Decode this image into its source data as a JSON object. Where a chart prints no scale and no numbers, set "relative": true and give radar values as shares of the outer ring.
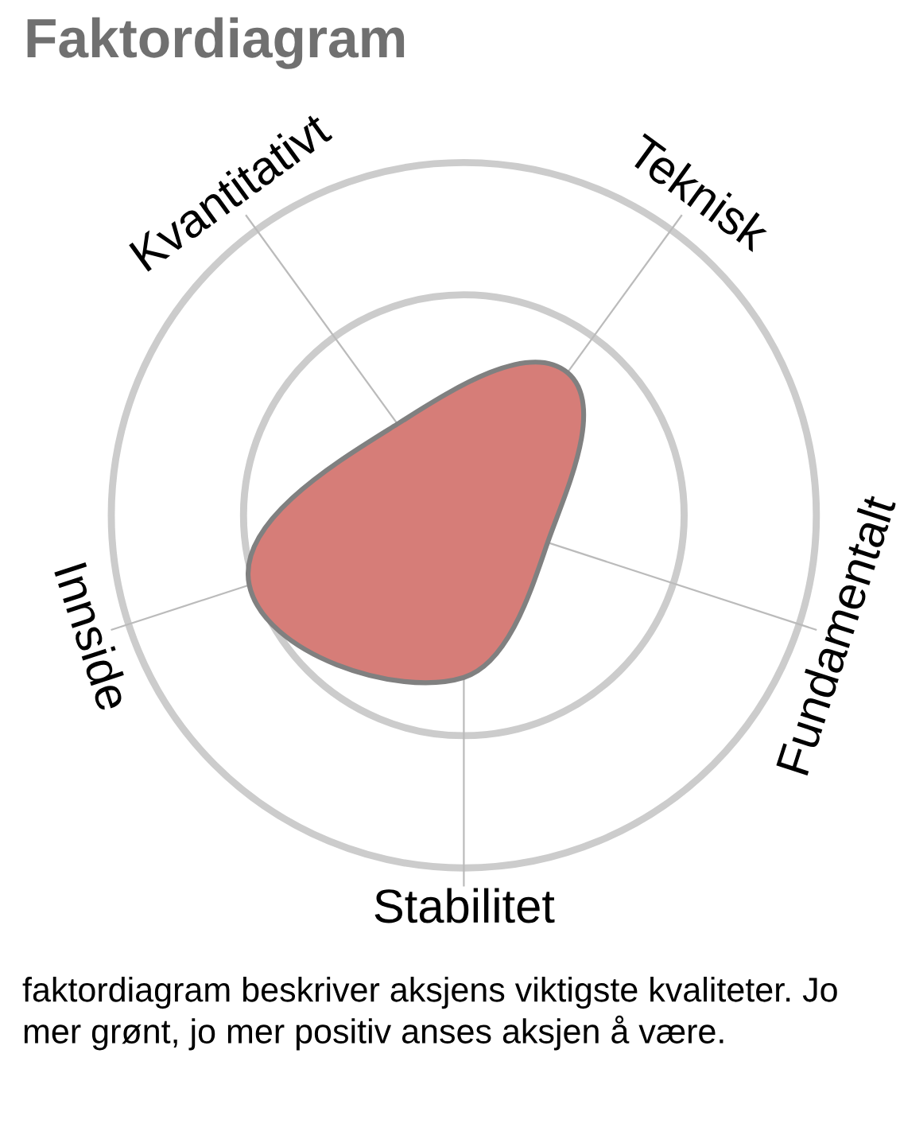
{
  "chart_data": {
    "type": "radar",
    "title": "Faktordiagram",
    "categories": [
      "Teknisk",
      "Fundamentalt",
      "Stabilitet",
      "Innside",
      "Kvantitativt"
    ],
    "relative": true,
    "series": [
      {
        "color": "#d67d78",
        "values": [
          0.5,
          0.25,
          0.46,
          0.64,
          0.32
        ]
      }
    ],
    "grid": true,
    "annotations": [
      "faktordiagram beskriver aksjens viktigste kvaliteter. Jo mer grønt, jo mer positiv anses aksjen å være."
    ]
  }
}
